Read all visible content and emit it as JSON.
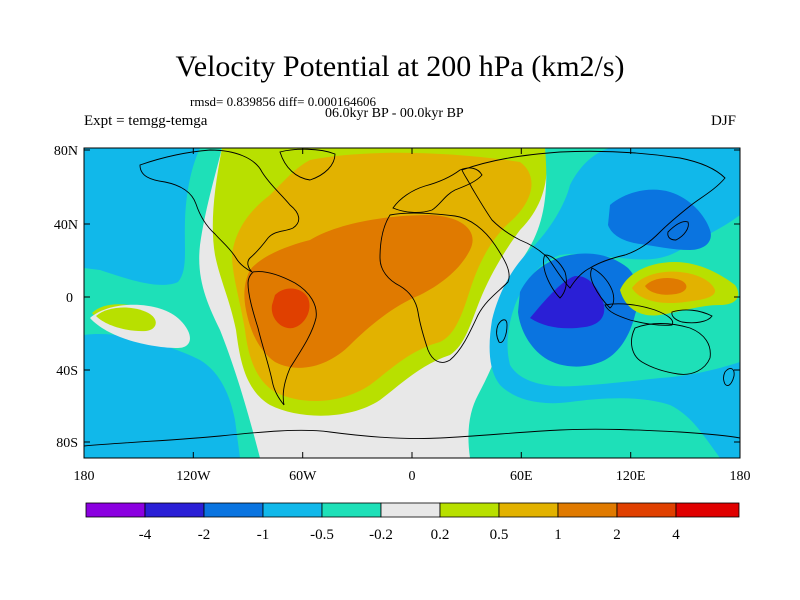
{
  "title": "Velocity Potential at 200 hPa (km2/s)",
  "stats": "rmsd= 0.839856 diff= 0.000164606",
  "period": "06.0kyr BP - 00.0kyr BP",
  "expt_label": "Expt = temgg-temga",
  "season": "DJF",
  "x_ticks": [
    "180",
    "120W",
    "60W",
    "0",
    "60E",
    "120E",
    "180"
  ],
  "y_ticks": [
    "80N",
    "40N",
    "0",
    "40S",
    "80S"
  ],
  "colorbar": {
    "labels": [
      "-4",
      "-2",
      "-1",
      "-0.5",
      "-0.2",
      "0.2",
      "0.5",
      "1",
      "2",
      "4"
    ],
    "colors": [
      "#8b00e0",
      "#2a1fd6",
      "#0a74e0",
      "#11b8ea",
      "#1ee0b8",
      "#e8e8e8",
      "#b8e000",
      "#e2b200",
      "#e07a00",
      "#e04000",
      "#e00000"
    ]
  },
  "palette": {
    "neutral": "#e8e8e8",
    "pos1": "#b8e000",
    "pos2": "#e2b200",
    "pos3": "#e07a00",
    "pos4": "#e04000",
    "neg1": "#1ee0b8",
    "neg2": "#11b8ea",
    "neg3": "#0a74e0",
    "neg4": "#2a1fd6"
  }
}
